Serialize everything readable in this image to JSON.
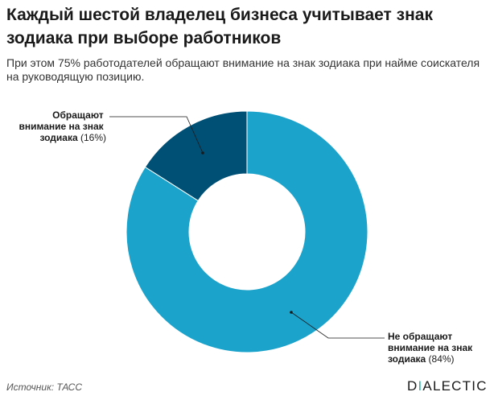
{
  "title": "Каждый шестой владелец бизнеса учитывает знак зодиака при выборе работников",
  "subtitle": "При этом 75% работодателей обращают внимание на знак зодиака при найме соискателя на руководящую позицию.",
  "source": "Источник: ТАСС",
  "logo_text": "DIALECTIC",
  "colors": {
    "text": "#1a1a1a",
    "accent": "#2ab3a8"
  },
  "chart_data": {
    "type": "pie",
    "donut": true,
    "slices": [
      {
        "label_lines": [
          "Обращают",
          "внимание на знак"
        ],
        "label_tail": "зодиака",
        "pct_text": "(16%)",
        "value": 16,
        "color": "#004f75"
      },
      {
        "label_lines": [
          "Не обращают",
          "внимание на знак"
        ],
        "label_tail": "зодиака",
        "pct_text": "(84%)",
        "value": 84,
        "color": "#1ba3cc"
      }
    ]
  }
}
